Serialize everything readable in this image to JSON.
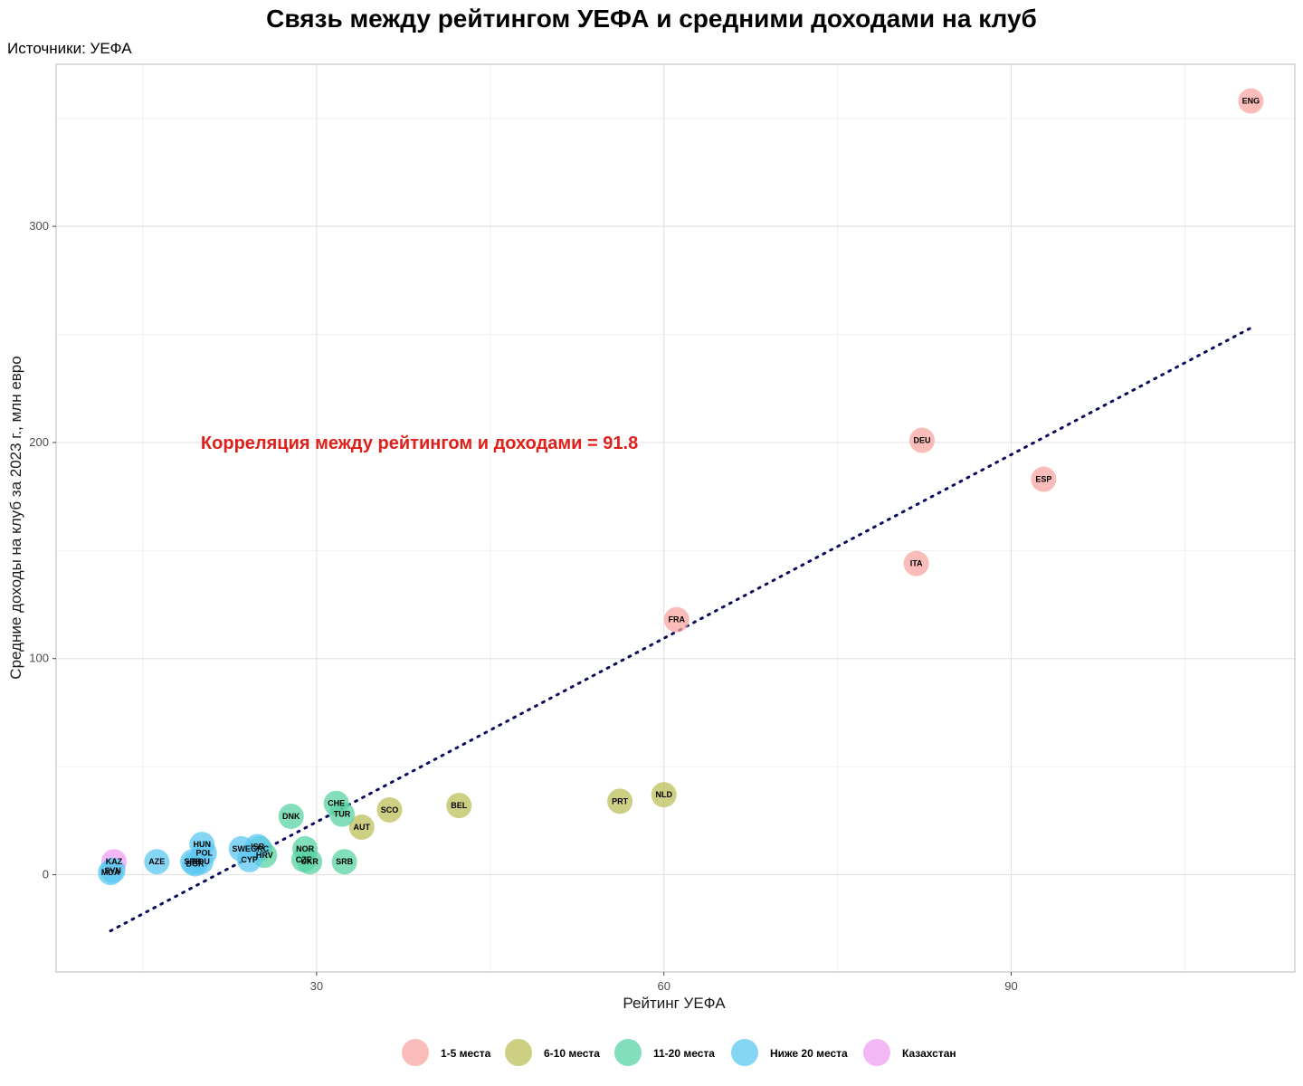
{
  "colors": {
    "group_1_5": "#f8a5a0",
    "group_6_10": "#bcbf5a",
    "group_11_20": "#5ad3a4",
    "group_below_20": "#5cc8f2",
    "group_kz": "#ef9ff2",
    "trend": "#0b0b5c",
    "annotation": "#e0201b"
  },
  "chart_data": {
    "type": "scatter",
    "title": "Связь между рейтингом УЕФА и средними доходами на клуб",
    "subtitle": "Источники: УЕФА",
    "xlabel": "Рейтинг УЕФА",
    "ylabel": "Средние доходы на клуб за 2023 г., млн евро",
    "xlim": [
      7.5,
      114.5
    ],
    "ylim": [
      -45,
      375
    ],
    "x_ticks": [
      30,
      60,
      90
    ],
    "y_ticks": [
      0,
      100,
      200,
      300
    ],
    "x_minor": [
      15,
      45,
      75,
      105
    ],
    "y_minor": [
      50,
      150,
      250,
      350
    ],
    "grid": true,
    "legend_position": "bottom",
    "annotation": {
      "text": "Корреляция между рейтингом и доходами = 91.8",
      "x": 20,
      "y": 200
    },
    "trend_line": {
      "x": [
        12.2,
        110.7
      ],
      "y": [
        -26,
        253
      ]
    },
    "groups": [
      {
        "key": "group_1_5",
        "label": "1-5 места"
      },
      {
        "key": "group_6_10",
        "label": "6-10 места"
      },
      {
        "key": "group_11_20",
        "label": "11-20 места"
      },
      {
        "key": "group_below_20",
        "label": "Ниже 20 места"
      },
      {
        "key": "group_kz",
        "label": "Казахстан"
      }
    ],
    "points": [
      {
        "label": "ENG",
        "x": 110.7,
        "y": 358,
        "group": "group_1_5"
      },
      {
        "label": "DEU",
        "x": 82.3,
        "y": 201,
        "group": "group_1_5"
      },
      {
        "label": "ESP",
        "x": 92.8,
        "y": 183,
        "group": "group_1_5"
      },
      {
        "label": "ITA",
        "x": 81.8,
        "y": 144,
        "group": "group_1_5"
      },
      {
        "label": "FRA",
        "x": 61.1,
        "y": 118,
        "group": "group_1_5"
      },
      {
        "label": "NLD",
        "x": 60.0,
        "y": 37,
        "group": "group_6_10"
      },
      {
        "label": "PRT",
        "x": 56.2,
        "y": 34,
        "group": "group_6_10"
      },
      {
        "label": "BEL",
        "x": 42.3,
        "y": 32,
        "group": "group_6_10"
      },
      {
        "label": "SCO",
        "x": 36.3,
        "y": 30,
        "group": "group_6_10"
      },
      {
        "label": "AUT",
        "x": 33.9,
        "y": 22,
        "group": "group_6_10"
      },
      {
        "label": "CHE",
        "x": 31.7,
        "y": 33,
        "group": "group_11_20"
      },
      {
        "label": "TUR",
        "x": 32.2,
        "y": 28,
        "group": "group_11_20"
      },
      {
        "label": "DNK",
        "x": 27.8,
        "y": 27,
        "group": "group_11_20"
      },
      {
        "label": "NOR",
        "x": 29.0,
        "y": 12,
        "group": "group_11_20"
      },
      {
        "label": "CZE",
        "x": 28.9,
        "y": 7,
        "group": "group_11_20"
      },
      {
        "label": "UKR",
        "x": 29.4,
        "y": 6,
        "group": "group_11_20"
      },
      {
        "label": "SRB",
        "x": 32.4,
        "y": 6,
        "group": "group_11_20"
      },
      {
        "label": "GRC",
        "x": 25.1,
        "y": 12,
        "group": "group_11_20"
      },
      {
        "label": "HRV",
        "x": 25.5,
        "y": 9,
        "group": "group_11_20"
      },
      {
        "label": "ISR",
        "x": 24.9,
        "y": 13,
        "group": "group_below_20"
      },
      {
        "label": "SWE",
        "x": 23.5,
        "y": 12,
        "group": "group_below_20"
      },
      {
        "label": "CYP",
        "x": 24.2,
        "y": 7,
        "group": "group_below_20"
      },
      {
        "label": "HUN",
        "x": 20.1,
        "y": 14,
        "group": "group_below_20"
      },
      {
        "label": "POL",
        "x": 20.3,
        "y": 10,
        "group": "group_below_20"
      },
      {
        "label": "SRB",
        "x": 19.3,
        "y": 6,
        "group": "group_below_20"
      },
      {
        "label": "ROU",
        "x": 20.0,
        "y": 6,
        "group": "group_below_20"
      },
      {
        "label": "BGR",
        "x": 19.5,
        "y": 5,
        "group": "group_below_20"
      },
      {
        "label": "AZE",
        "x": 16.2,
        "y": 6,
        "group": "group_below_20"
      },
      {
        "label": "KAZ",
        "x": 12.5,
        "y": 6,
        "group": "group_kz"
      },
      {
        "label": "SVN",
        "x": 12.4,
        "y": 2,
        "group": "group_below_20"
      },
      {
        "label": "MDA",
        "x": 12.2,
        "y": 1,
        "group": "group_below_20"
      }
    ]
  }
}
